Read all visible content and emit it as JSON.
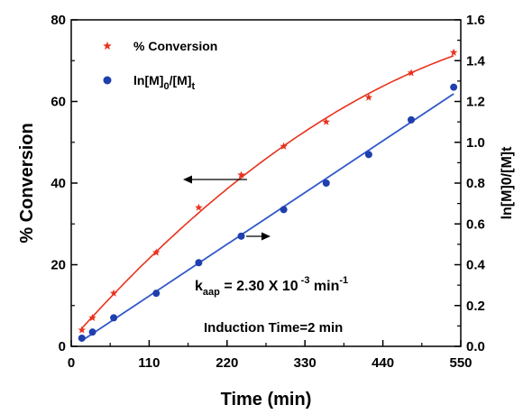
{
  "chart_data": {
    "type": "scatter",
    "x": [
      15,
      30,
      60,
      120,
      180,
      240,
      300,
      360,
      420,
      480,
      540
    ],
    "xlabel": "Time (min)",
    "xlim": [
      0,
      550
    ],
    "xticks": [
      "0",
      "110",
      "220",
      "330",
      "440",
      "550"
    ],
    "ylabel": "% Conversion",
    "ylim": [
      0,
      80
    ],
    "yticks": [
      "0",
      "20",
      "40",
      "60",
      "80"
    ],
    "y2label": "ln[M]0/[M]t",
    "y2lim": [
      0,
      1.6
    ],
    "y2ticks": [
      "0.0",
      "0.2",
      "0.4",
      "0.6",
      "0.8",
      "1.0",
      "1.2",
      "1.4",
      "1.6"
    ],
    "series": [
      {
        "name": "% Conversion",
        "axis": "left",
        "marker": "star",
        "color": "#e8321e",
        "values": [
          4,
          7,
          13,
          23,
          34,
          42,
          49,
          55,
          61,
          67,
          72
        ],
        "fit": "curve"
      },
      {
        "name_parts": [
          "ln[M]",
          "0",
          "/[M]",
          "t"
        ],
        "axis": "right",
        "marker": "circle",
        "color": "#1f3fae",
        "values": [
          0.04,
          0.07,
          0.14,
          0.26,
          0.41,
          0.54,
          0.67,
          0.8,
          0.94,
          1.11,
          1.27
        ],
        "fit": "linear",
        "fit_color": "#2f57c8"
      }
    ],
    "legend": "top-left",
    "grid": false,
    "annotations": {
      "rate": {
        "k": "k",
        "k_sub": "aap",
        "eq": " = 2.30 X  10",
        "exp": " -3",
        "unit": " min",
        "unit_exp": "-1"
      },
      "induction": "Induction Time=2 min"
    },
    "colors": {
      "conversion": "#e8321e",
      "ln_points": "#1f3fae",
      "ln_fit": "#2f57c8"
    }
  }
}
